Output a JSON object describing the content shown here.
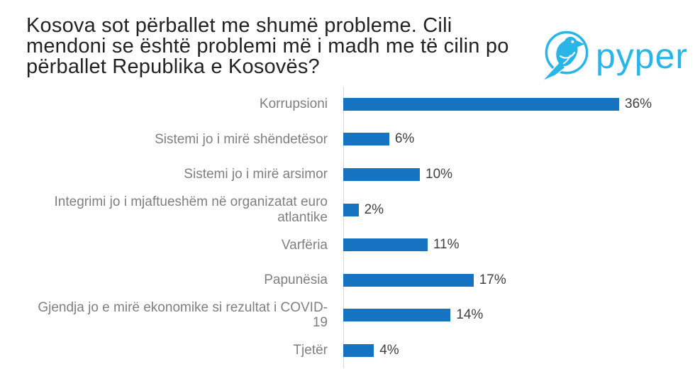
{
  "slide": {
    "background": "#FFFFFF"
  },
  "title": {
    "full_text": "Kosova sot përballet me shumë probleme. Cili mendoni se është problemi më i madh me të cilin po përballet Republika e Kosovës?",
    "lines": [
      "Kosova sot përballet me shumë probleme. Cili",
      "mendoni se është problemi më i madh me të cilin po",
      "përballet Republika e Kosovës?"
    ],
    "color": "#222222"
  },
  "logo": {
    "brand": "pyper",
    "icon": "pyper-bird-logo",
    "color": "#29B5E8"
  },
  "chart_data": {
    "type": "bar",
    "orientation": "horizontal",
    "title": "Kosova sot përballet me shumë probleme. Cili mendoni se është problemi më i madh me të cilin po përballet Republika e Kosovës?",
    "categories": [
      "Korrupsioni",
      "Sistemi jo i mirë shëndetësor",
      "Sistemi jo i mirë arsimor",
      "Integrimi jo i mjaftueshëm në organizatat euro atlantike",
      "Varfëria",
      "Papunësia",
      "Gjendja jo e mirë ekonomike si rezultat i COVID-19",
      "Tjetër"
    ],
    "values": [
      36,
      6,
      10,
      2,
      11,
      17,
      14,
      4
    ],
    "value_labels": [
      "36%",
      "6%",
      "10%",
      "2%",
      "11%",
      "17%",
      "14%",
      "4%"
    ],
    "unit": "%",
    "xlim": [
      0,
      36
    ],
    "grid": false,
    "legend": false,
    "bar_color": "#1673C2",
    "category_label_color": "#7F7F7F",
    "value_label_color": "#404040",
    "axis_line_color": "#D9D9D9"
  }
}
